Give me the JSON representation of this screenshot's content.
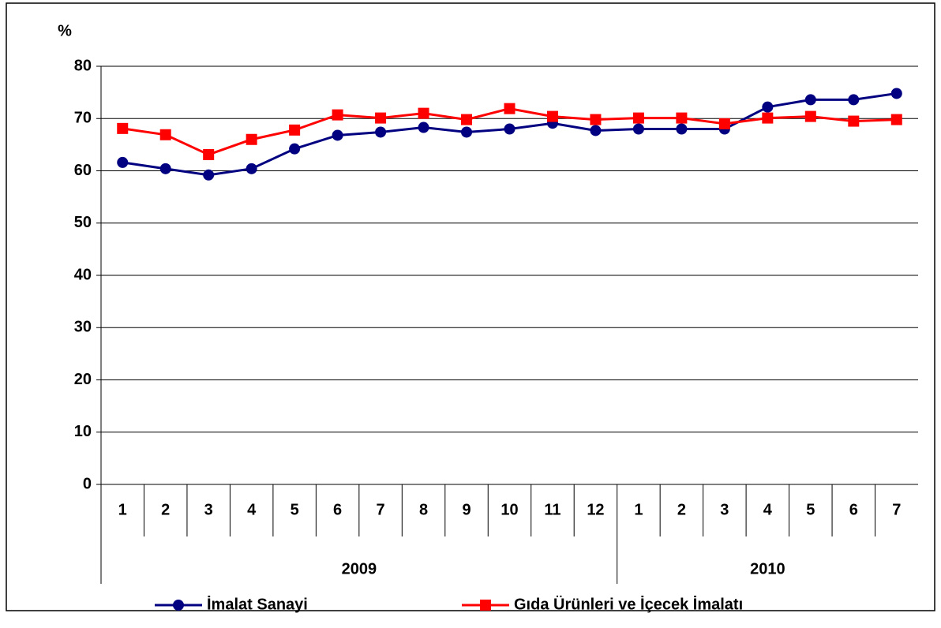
{
  "chart_data": {
    "type": "line",
    "y_label": "%",
    "groups": [
      {
        "label": "2009",
        "categories": [
          "1",
          "2",
          "3",
          "4",
          "5",
          "6",
          "7",
          "8",
          "9",
          "10",
          "11",
          "12"
        ]
      },
      {
        "label": "2010",
        "categories": [
          "1",
          "2",
          "3",
          "4",
          "5",
          "6",
          "7"
        ]
      }
    ],
    "series": [
      {
        "name": "İmalat Sanayi",
        "color": "#000080",
        "marker": "circle",
        "values": [
          61.6,
          60.4,
          59.2,
          60.4,
          64.2,
          66.8,
          67.4,
          68.3,
          67.4,
          68.0,
          69.1,
          67.7,
          68.0,
          68.0,
          68.0,
          72.2,
          73.6,
          73.6,
          74.8
        ]
      },
      {
        "name": "Gıda Ürünleri ve İçecek İmalatı",
        "color": "#ff0000",
        "marker": "square",
        "values": [
          68.1,
          66.9,
          63.1,
          66.0,
          67.8,
          70.7,
          70.1,
          71.0,
          69.8,
          71.9,
          70.4,
          69.8,
          70.1,
          70.1,
          69.0,
          70.1,
          70.4,
          69.5,
          69.8
        ]
      }
    ],
    "ylim": [
      0,
      80
    ],
    "yticks": [
      0,
      10,
      20,
      30,
      40,
      50,
      60,
      70,
      80
    ],
    "grid": true,
    "legend": "bottom"
  }
}
